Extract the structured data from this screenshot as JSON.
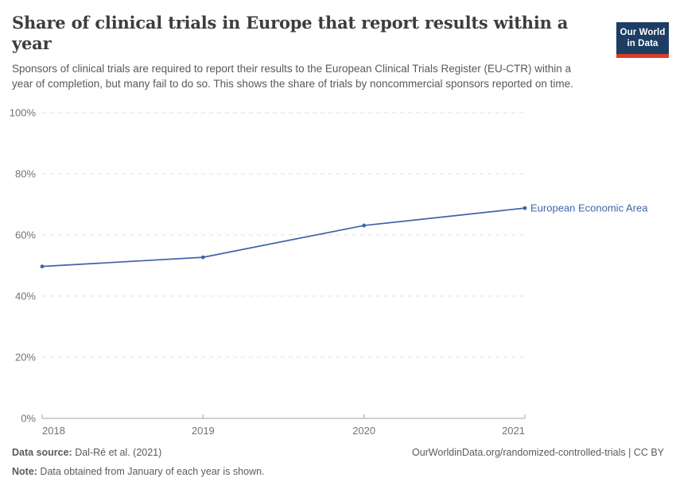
{
  "header": {
    "title": "Share of clinical trials in Europe that report results within a year",
    "subtitle": "Sponsors of clinical trials are required to report their results to the European Clinical Trials Register (EU-CTR) within a year of completion, but many fail to do so. This shows the share of trials by noncommercial sponsors reported on time.",
    "logo": {
      "line1": "Our World",
      "line2": "in Data"
    }
  },
  "chart_data": {
    "type": "line",
    "title": "Share of clinical trials in Europe that report results within a year",
    "x": [
      "2018",
      "2019",
      "2020",
      "2021"
    ],
    "series": [
      {
        "name": "European Economic Area",
        "values": [
          49.7,
          52.7,
          63.1,
          68.8
        ]
      }
    ],
    "ylim": [
      0,
      100
    ],
    "ytick_values": [
      0,
      20,
      40,
      60,
      80,
      100
    ],
    "ytick_suffix": "%",
    "grid": "horizontal-dashed",
    "legend_position": "end-of-line-label"
  },
  "footer": {
    "datasource_label": "Data source:",
    "datasource_value": " Dal-Ré et al. (2021)",
    "note_label": "Note:",
    "note_value": " Data obtained from January of each year is shown.",
    "link": "OurWorldinData.org/randomized-controlled-trials | CC BY"
  },
  "colors": {
    "line": "#4063a7",
    "series_label": "#4063a7",
    "grid": "#e2e2e2",
    "axis": "#a3a3a3",
    "tick_label": "#737373",
    "title": "#3d3d3d",
    "subtitle": "#595959",
    "footer": "#5b5b5b",
    "logo_bg": "#1d3d63",
    "logo_bar": "#dc3d2b"
  }
}
